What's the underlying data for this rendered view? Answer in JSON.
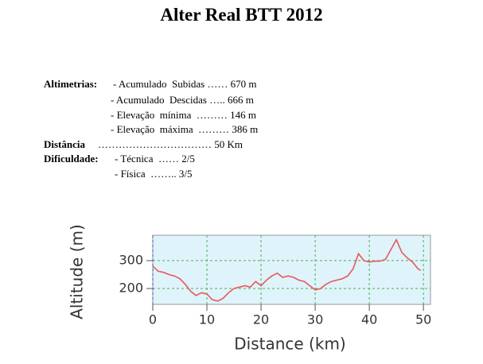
{
  "title": "Alter Real BTT 2012",
  "rows": [
    {
      "label": "Altimetrias:",
      "text": "- Acumulado  Subidas …… 670 m"
    },
    {
      "text": "- Acumulado  Descidas ….. 666 m"
    },
    {
      "text": "- Elevação  mínima  ……… 146 m"
    },
    {
      "text": "- Elevação  máxima  ……… 386 m"
    },
    {
      "label": "Distância",
      "text": "…………………………… 50 Km"
    },
    {
      "label": "Dificuldade:",
      "text": "- Técnica  …… 2/5"
    },
    {
      "text": "- Física  …….. 3/5"
    }
  ],
  "chart_data": {
    "type": "line",
    "xlabel": "Distance (km)",
    "ylabel": "Altitude (m)",
    "x": [
      0,
      1,
      2,
      3,
      4,
      5,
      6,
      7,
      8,
      9,
      10,
      11,
      12,
      13,
      14,
      15,
      16,
      17,
      18,
      19,
      20,
      21,
      22,
      23,
      24,
      25,
      26,
      27,
      28,
      29,
      30,
      31,
      32,
      33,
      34,
      35,
      36,
      37,
      38,
      39,
      40,
      41,
      42,
      43,
      44,
      45,
      46,
      47,
      48,
      49,
      49.5
    ],
    "series": [
      {
        "color": "#e8585a",
        "values": [
          280,
          262,
          258,
          250,
          245,
          235,
          215,
          190,
          175,
          185,
          180,
          160,
          155,
          165,
          185,
          200,
          205,
          210,
          205,
          225,
          210,
          230,
          245,
          255,
          240,
          245,
          240,
          230,
          225,
          210,
          195,
          200,
          215,
          225,
          230,
          235,
          245,
          270,
          325,
          300,
          295,
          298,
          298,
          305,
          340,
          375,
          330,
          310,
          295,
          270,
          265
        ]
      }
    ],
    "xlim": [
      0,
      51.3
    ],
    "ylim": [
      143,
      391
    ],
    "xticks": [
      0,
      10,
      20,
      30,
      40,
      50
    ],
    "yticks": [
      200,
      300
    ],
    "grid": true
  }
}
